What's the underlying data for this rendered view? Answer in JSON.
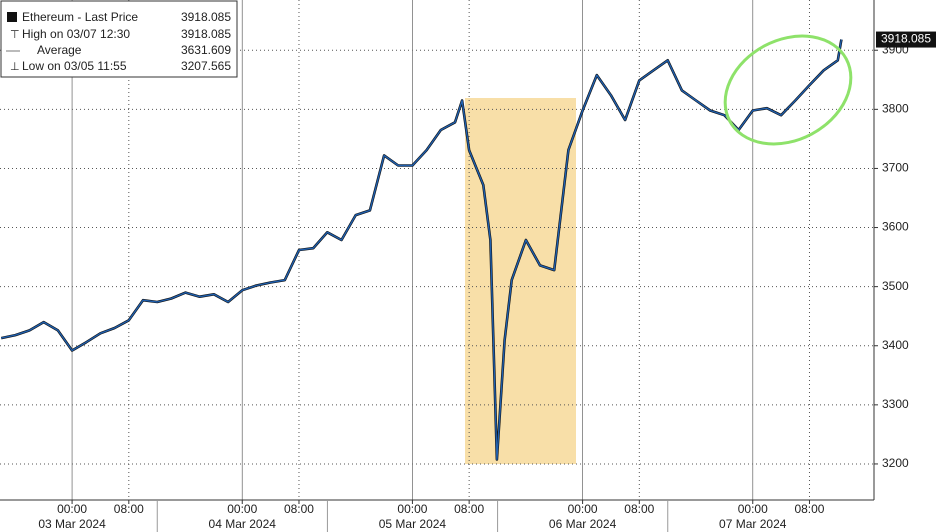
{
  "chart_data": {
    "type": "line",
    "x": [
      "2024-03-02 14:00",
      "2024-03-02 16:00",
      "2024-03-02 18:00",
      "2024-03-02 20:00",
      "2024-03-02 22:00",
      "2024-03-03 00:00",
      "2024-03-03 02:00",
      "2024-03-03 04:00",
      "2024-03-03 06:00",
      "2024-03-03 08:00",
      "2024-03-03 10:00",
      "2024-03-03 12:00",
      "2024-03-03 14:00",
      "2024-03-03 16:00",
      "2024-03-03 18:00",
      "2024-03-03 20:00",
      "2024-03-03 22:00",
      "2024-03-04 00:00",
      "2024-03-04 02:00",
      "2024-03-04 04:00",
      "2024-03-04 06:00",
      "2024-03-04 08:00",
      "2024-03-04 10:00",
      "2024-03-04 12:00",
      "2024-03-04 14:00",
      "2024-03-04 16:00",
      "2024-03-04 18:00",
      "2024-03-04 20:00",
      "2024-03-04 22:00",
      "2024-03-05 00:00",
      "2024-03-05 02:00",
      "2024-03-05 04:00",
      "2024-03-05 06:00",
      "2024-03-05 07:00",
      "2024-03-05 08:00",
      "2024-03-05 10:00",
      "2024-03-05 11:00",
      "2024-03-05 11:55",
      "2024-03-05 13:00",
      "2024-03-05 14:00",
      "2024-03-05 16:00",
      "2024-03-05 18:00",
      "2024-03-05 20:00",
      "2024-03-05 22:00",
      "2024-03-06 00:00",
      "2024-03-06 02:00",
      "2024-03-06 04:00",
      "2024-03-06 06:00",
      "2024-03-06 08:00",
      "2024-03-06 10:00",
      "2024-03-06 12:00",
      "2024-03-06 14:00",
      "2024-03-06 16:00",
      "2024-03-06 18:00",
      "2024-03-06 20:00",
      "2024-03-06 22:00",
      "2024-03-07 00:00",
      "2024-03-07 02:00",
      "2024-03-07 04:00",
      "2024-03-07 06:00",
      "2024-03-07 08:00",
      "2024-03-07 10:00",
      "2024-03-07 12:00",
      "2024-03-07 12:30"
    ],
    "series": [
      {
        "name": "Ethereum - Last Price",
        "color": "#1f5fae",
        "values": [
          3413,
          3418,
          3426,
          3440,
          3426,
          3392,
          3406,
          3421,
          3430,
          3443,
          3477,
          3474,
          3480,
          3490,
          3483,
          3487,
          3474,
          3494,
          3502,
          3507,
          3511,
          3562,
          3565,
          3592,
          3579,
          3621,
          3629,
          3722,
          3705,
          3705,
          3731,
          3765,
          3778,
          3815,
          3731,
          3672,
          3579,
          3207.565,
          3409,
          3511,
          3579,
          3536,
          3528,
          3731,
          3798,
          3858,
          3824,
          3782,
          3849,
          3866,
          3883,
          3832,
          3815,
          3798,
          3790,
          3765,
          3798,
          3802,
          3790,
          3815,
          3841,
          3866,
          3883,
          3918.085
        ]
      }
    ],
    "legend": [
      {
        "label": "Ethereum - Last Price",
        "value": 3918.085
      },
      {
        "label": "High on 03/07 12:30",
        "value": 3918.085
      },
      {
        "label": "Average",
        "value": 3631.609
      },
      {
        "label": "Low on 03/05 11:55",
        "value": 3207.565
      }
    ],
    "last_price": 3918.085,
    "xlim": [
      "2024-03-02 13:50",
      "2024-03-07 17:06"
    ],
    "xticks": [
      {
        "value": "2024-03-03 00:00",
        "label": "00:00"
      },
      {
        "value": "2024-03-03 08:00",
        "label": "08:00"
      },
      {
        "value": "2024-03-04 00:00",
        "label": "00:00"
      },
      {
        "value": "2024-03-04 08:00",
        "label": "08:00"
      },
      {
        "value": "2024-03-05 00:00",
        "label": "00:00"
      },
      {
        "value": "2024-03-05 08:00",
        "label": "08:00"
      },
      {
        "value": "2024-03-06 00:00",
        "label": "00:00"
      },
      {
        "value": "2024-03-06 08:00",
        "label": "08:00"
      },
      {
        "value": "2024-03-07 00:00",
        "label": "00:00"
      },
      {
        "value": "2024-03-07 08:00",
        "label": "08:00"
      }
    ],
    "date_labels": [
      {
        "value": "2024-03-03 00:00",
        "label": "03 Mar 2024"
      },
      {
        "value": "2024-03-04 00:00",
        "label": "04 Mar 2024"
      },
      {
        "value": "2024-03-05 00:00",
        "label": "05 Mar 2024"
      },
      {
        "value": "2024-03-06 00:00",
        "label": "06 Mar 2024"
      },
      {
        "value": "2024-03-07 00:00",
        "label": "07 Mar 2024"
      }
    ],
    "ylim": [
      3139,
      3985
    ],
    "yticks": [
      3200,
      3300,
      3400,
      3500,
      3600,
      3700,
      3800,
      3900
    ],
    "grid": true
  }
}
